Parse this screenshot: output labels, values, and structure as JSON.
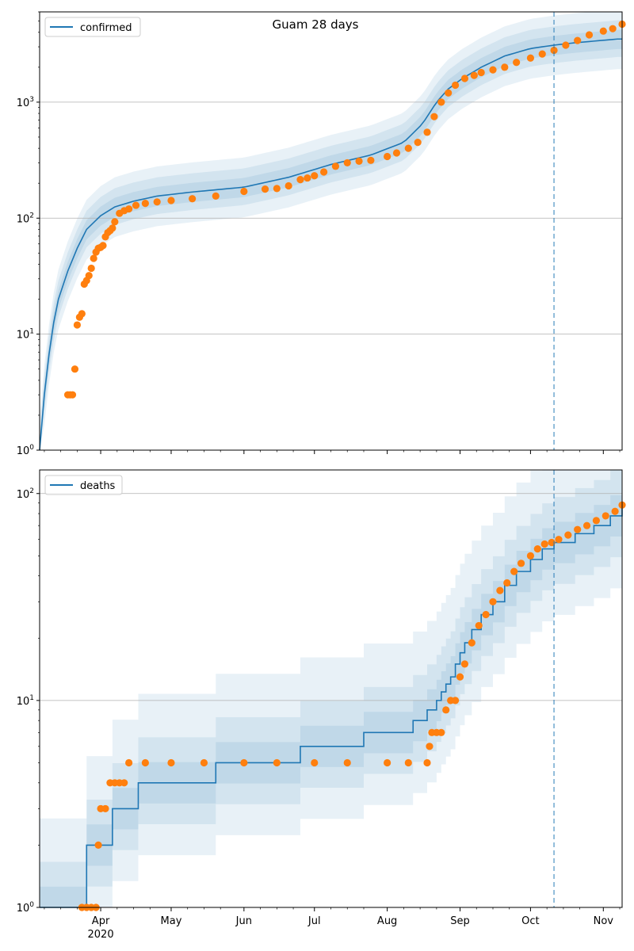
{
  "figure_title": "Guam 28 days",
  "colors": {
    "model_line": "#1f77b4",
    "observed_points": "#ff7f0e",
    "band": "#1f77b4",
    "grid": "#b0b0b0",
    "forecast_marker": "#1f77b4"
  },
  "x_axis": {
    "tick_labels": [
      "Apr",
      "May",
      "Jun",
      "Jul",
      "Aug",
      "Sep",
      "Oct",
      "Nov"
    ],
    "year_label": "2020",
    "forecast_start": "2020-10-11"
  },
  "chart_data": [
    {
      "type": "line",
      "name": "confirmed",
      "legend": "confirmed",
      "legend_position": "top-left",
      "y_scale": "log",
      "ylim": [
        1,
        6000
      ],
      "y_tick_labels": [
        "10^0",
        "10^1",
        "10^2",
        "10^3"
      ],
      "grid": "y-major",
      "model": {
        "x": [
          "2020-03-06",
          "2020-03-08",
          "2020-03-11",
          "2020-03-14",
          "2020-03-18",
          "2020-03-22",
          "2020-03-26",
          "2020-04-01",
          "2020-04-07",
          "2020-04-15",
          "2020-04-25",
          "2020-05-10",
          "2020-06-01",
          "2020-06-20",
          "2020-07-08",
          "2020-07-25",
          "2020-08-08",
          "2020-08-16",
          "2020-08-22",
          "2020-08-27",
          "2020-09-02",
          "2020-09-10",
          "2020-09-20",
          "2020-10-01",
          "2020-10-11",
          "2020-10-20",
          "2020-11-07"
        ],
        "y": [
          1,
          3,
          10,
          20,
          35,
          55,
          80,
          105,
          125,
          140,
          155,
          168,
          185,
          225,
          290,
          350,
          450,
          650,
          1000,
          1300,
          1600,
          2000,
          2500,
          2900,
          3100,
          3250,
          3500
        ]
      },
      "band_factors": [
        [
          0.55,
          1.8
        ],
        [
          0.7,
          1.45
        ],
        [
          0.82,
          1.2
        ]
      ],
      "observed": {
        "x": [
          "2020-03-18",
          "2020-03-19",
          "2020-03-20",
          "2020-03-21",
          "2020-03-22",
          "2020-03-23",
          "2020-03-24",
          "2020-03-25",
          "2020-03-26",
          "2020-03-27",
          "2020-03-28",
          "2020-03-29",
          "2020-03-30",
          "2020-03-31",
          "2020-04-01",
          "2020-04-02",
          "2020-04-03",
          "2020-04-04",
          "2020-04-05",
          "2020-04-06",
          "2020-04-07",
          "2020-04-09",
          "2020-04-11",
          "2020-04-13",
          "2020-04-16",
          "2020-04-20",
          "2020-04-25",
          "2020-05-01",
          "2020-05-10",
          "2020-05-20",
          "2020-06-01",
          "2020-06-10",
          "2020-06-15",
          "2020-06-20",
          "2020-06-25",
          "2020-06-28",
          "2020-07-01",
          "2020-07-05",
          "2020-07-10",
          "2020-07-15",
          "2020-07-20",
          "2020-07-25",
          "2020-08-01",
          "2020-08-05",
          "2020-08-10",
          "2020-08-14",
          "2020-08-18",
          "2020-08-21",
          "2020-08-24",
          "2020-08-27",
          "2020-08-30",
          "2020-09-03",
          "2020-09-07",
          "2020-09-10",
          "2020-09-15",
          "2020-09-20",
          "2020-09-25",
          "2020-10-01",
          "2020-10-06",
          "2020-10-11",
          "2020-10-16",
          "2020-10-21",
          "2020-10-26",
          "2020-11-01",
          "2020-11-05",
          "2020-11-09"
        ],
        "y": [
          3,
          3,
          3,
          5,
          12,
          14,
          15,
          27,
          29,
          32,
          37,
          45,
          51,
          55,
          56,
          58,
          69,
          75,
          78,
          82,
          93,
          110,
          116,
          120,
          129,
          134,
          138,
          142,
          147,
          155,
          170,
          178,
          180,
          190,
          215,
          222,
          232,
          250,
          280,
          300,
          310,
          315,
          340,
          365,
          400,
          450,
          550,
          750,
          1000,
          1200,
          1400,
          1600,
          1700,
          1800,
          1900,
          2000,
          2200,
          2400,
          2600,
          2800,
          3100,
          3400,
          3800,
          4100,
          4300,
          4700
        ]
      }
    },
    {
      "type": "line",
      "name": "deaths",
      "legend": "deaths",
      "legend_position": "top-left",
      "y_scale": "log",
      "ylim": [
        1,
        130
      ],
      "y_tick_labels": [
        "10^0",
        "10^1",
        "10^2"
      ],
      "grid": "y-major",
      "model": {
        "step": true,
        "x": [
          "2020-03-06",
          "2020-03-26",
          "2020-04-06",
          "2020-04-17",
          "2020-04-26",
          "2020-05-20",
          "2020-06-25",
          "2020-07-22",
          "2020-08-12",
          "2020-08-15",
          "2020-08-18",
          "2020-08-22",
          "2020-08-24",
          "2020-08-26",
          "2020-08-28",
          "2020-08-30",
          "2020-09-01",
          "2020-09-03",
          "2020-09-06",
          "2020-09-10",
          "2020-09-15",
          "2020-09-20",
          "2020-09-25",
          "2020-10-01",
          "2020-10-06",
          "2020-10-11",
          "2020-10-20",
          "2020-10-28",
          "2020-11-04",
          "2020-11-09"
        ],
        "y": [
          1,
          2,
          3,
          4,
          4,
          5,
          6,
          7,
          8,
          8,
          9,
          10,
          11,
          12,
          13,
          15,
          17,
          19,
          22,
          26,
          30,
          36,
          42,
          48,
          54,
          58,
          64,
          70,
          78,
          85
        ]
      },
      "band_offsets": [
        [
          -0.35,
          0.38
        ],
        [
          -0.2,
          0.22
        ],
        [
          -0.1,
          0.1
        ]
      ],
      "observed": {
        "x": [
          "2020-03-24",
          "2020-03-26",
          "2020-03-28",
          "2020-03-30",
          "2020-03-31",
          "2020-04-01",
          "2020-04-03",
          "2020-04-05",
          "2020-04-07",
          "2020-04-09",
          "2020-04-11",
          "2020-04-13",
          "2020-04-20",
          "2020-05-01",
          "2020-05-15",
          "2020-06-01",
          "2020-06-15",
          "2020-07-01",
          "2020-07-15",
          "2020-08-01",
          "2020-08-10",
          "2020-08-18",
          "2020-08-19",
          "2020-08-20",
          "2020-08-22",
          "2020-08-24",
          "2020-08-26",
          "2020-08-28",
          "2020-08-30",
          "2020-09-01",
          "2020-09-03",
          "2020-09-06",
          "2020-09-09",
          "2020-09-12",
          "2020-09-15",
          "2020-09-18",
          "2020-09-21",
          "2020-09-24",
          "2020-09-27",
          "2020-10-01",
          "2020-10-04",
          "2020-10-07",
          "2020-10-10",
          "2020-10-13",
          "2020-10-17",
          "2020-10-21",
          "2020-10-25",
          "2020-10-29",
          "2020-11-02",
          "2020-11-06",
          "2020-11-09"
        ],
        "y": [
          1,
          1,
          1,
          1,
          2,
          3,
          3,
          4,
          4,
          4,
          4,
          5,
          5,
          5,
          5,
          5,
          5,
          5,
          5,
          5,
          5,
          5,
          6,
          7,
          7,
          7,
          9,
          10,
          10,
          13,
          15,
          19,
          23,
          26,
          30,
          34,
          37,
          42,
          46,
          50,
          54,
          57,
          58,
          60,
          63,
          67,
          70,
          74,
          78,
          82,
          88
        ]
      }
    }
  ]
}
